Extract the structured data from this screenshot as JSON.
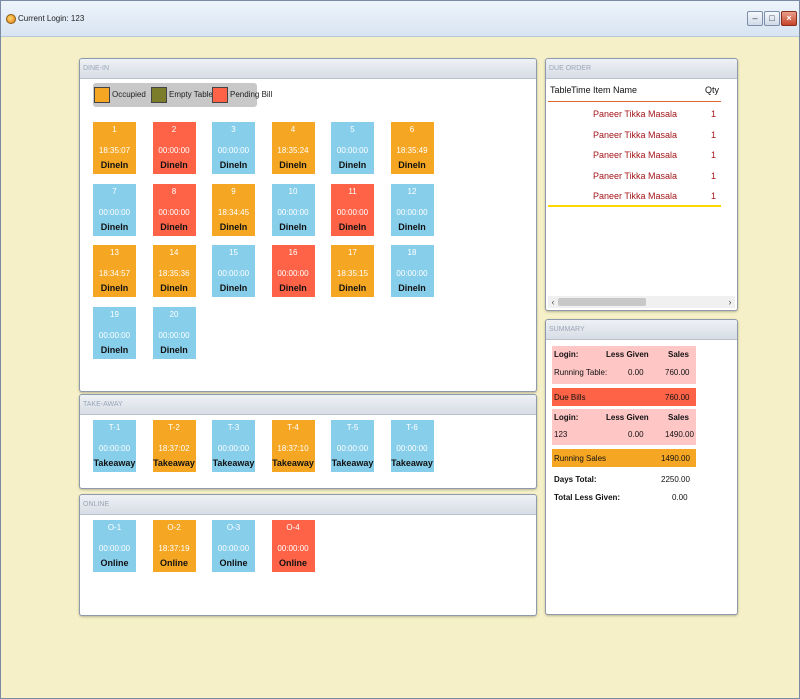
{
  "window": {
    "title": "Current Login: 123"
  },
  "colors": {
    "occupied": "#f5a623",
    "empty": "#7b7d2a",
    "pending": "#ff6347",
    "empty_tile": "#87ceeb"
  },
  "dinein": {
    "header": "DINE-IN",
    "legend": {
      "occupied": "Occupied",
      "empty": "Empty Table",
      "pending": "Pending Bill"
    },
    "tables": [
      {
        "num": "1",
        "time": "18:35:07",
        "type": "DineIn",
        "status": "occupied"
      },
      {
        "num": "2",
        "time": "00:00:00",
        "type": "DineIn",
        "status": "pending"
      },
      {
        "num": "3",
        "time": "00:00:00",
        "type": "DineIn",
        "status": "empty"
      },
      {
        "num": "4",
        "time": "18:35:24",
        "type": "DineIn",
        "status": "occupied"
      },
      {
        "num": "5",
        "time": "00:00:00",
        "type": "DineIn",
        "status": "empty"
      },
      {
        "num": "6",
        "time": "18:35:49",
        "type": "DineIn",
        "status": "occupied"
      },
      {
        "num": "7",
        "time": "00:00:00",
        "type": "DineIn",
        "status": "empty"
      },
      {
        "num": "8",
        "time": "00:00:00",
        "type": "DineIn",
        "status": "pending"
      },
      {
        "num": "9",
        "time": "18:34:45",
        "type": "DineIn",
        "status": "occupied"
      },
      {
        "num": "10",
        "time": "00:00:00",
        "type": "DineIn",
        "status": "empty"
      },
      {
        "num": "11",
        "time": "00:00:00",
        "type": "DineIn",
        "status": "pending"
      },
      {
        "num": "12",
        "time": "00:00:00",
        "type": "DineIn",
        "status": "empty"
      },
      {
        "num": "13",
        "time": "18:34:57",
        "type": "DineIn",
        "status": "occupied"
      },
      {
        "num": "14",
        "time": "18:35:36",
        "type": "DineIn",
        "status": "occupied"
      },
      {
        "num": "15",
        "time": "00:00:00",
        "type": "DineIn",
        "status": "empty"
      },
      {
        "num": "16",
        "time": "00:00:00",
        "type": "DineIn",
        "status": "pending"
      },
      {
        "num": "17",
        "time": "18:35:15",
        "type": "DineIn",
        "status": "occupied"
      },
      {
        "num": "18",
        "time": "00:00:00",
        "type": "DineIn",
        "status": "empty"
      },
      {
        "num": "19",
        "time": "00:00:00",
        "type": "DineIn",
        "status": "empty"
      },
      {
        "num": "20",
        "time": "00:00:00",
        "type": "DineIn",
        "status": "empty"
      }
    ]
  },
  "takeaway": {
    "header": "TAKE-AWAY",
    "orders": [
      {
        "num": "T-1",
        "time": "00:00:00",
        "type": "Takeaway",
        "status": "empty"
      },
      {
        "num": "T-2",
        "time": "18:37:02",
        "type": "Takeaway",
        "status": "occupied"
      },
      {
        "num": "T-3",
        "time": "00:00:00",
        "type": "Takeaway",
        "status": "empty"
      },
      {
        "num": "T-4",
        "time": "18:37:10",
        "type": "Takeaway",
        "status": "occupied"
      },
      {
        "num": "T-5",
        "time": "00:00:00",
        "type": "Takeaway",
        "status": "empty"
      },
      {
        "num": "T-6",
        "time": "00:00:00",
        "type": "Takeaway",
        "status": "empty"
      }
    ]
  },
  "online": {
    "header": "ONLINE",
    "orders": [
      {
        "num": "O-1",
        "time": "00:00:00",
        "type": "Online",
        "status": "empty"
      },
      {
        "num": "O-2",
        "time": "18:37:19",
        "type": "Online",
        "status": "occupied"
      },
      {
        "num": "O-3",
        "time": "00:00:00",
        "type": "Online",
        "status": "empty"
      },
      {
        "num": "O-4",
        "time": "00:00:00",
        "type": "Online",
        "status": "pending"
      }
    ]
  },
  "due_order": {
    "header": "DUE ORDER",
    "columns": {
      "table": "Table",
      "time": "Time",
      "item": "Item Name",
      "qty": "Qty"
    },
    "rows": [
      {
        "table": "",
        "time": "",
        "item": "Paneer Tikka Masala",
        "qty": "1"
      },
      {
        "table": "",
        "time": "",
        "item": "Paneer Tikka Masala",
        "qty": "1"
      },
      {
        "table": "",
        "time": "",
        "item": "Paneer Tikka Masala",
        "qty": "1"
      },
      {
        "table": "",
        "time": "",
        "item": "Paneer Tikka Masala",
        "qty": "1"
      },
      {
        "table": "",
        "time": "",
        "item": "Paneer Tikka Masala",
        "qty": "1"
      }
    ]
  },
  "summary": {
    "header": "SUMMARY",
    "table_head": {
      "login": "Login:",
      "less": "Less Given",
      "sales": "Sales"
    },
    "running_table": {
      "label": "Running Table:",
      "less": "0.00",
      "sales": "760.00"
    },
    "due_bills": {
      "label": "Due Bills",
      "value": "760.00"
    },
    "login_head": {
      "login": "Login:",
      "less": "Less Given",
      "sales": "Sales"
    },
    "login_row": {
      "login": "123",
      "less": "0.00",
      "sales": "1490.00"
    },
    "running_sales": {
      "label": "Running Sales",
      "value": "1490.00"
    },
    "days_total": {
      "label": "Days Total:",
      "value": "2250.00"
    },
    "total_less": {
      "label": "Total Less Given:",
      "value": "0.00"
    }
  }
}
